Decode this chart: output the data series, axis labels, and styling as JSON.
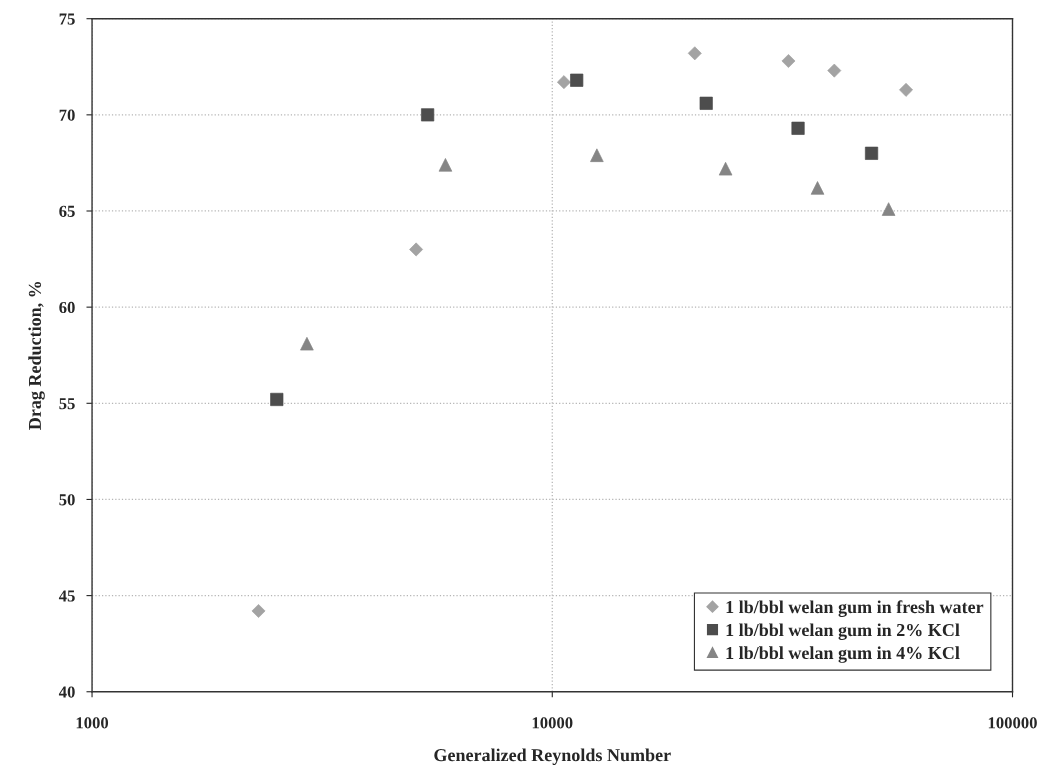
{
  "chart_data": {
    "type": "scatter",
    "xlabel": "Generalized Reynolds Number",
    "ylabel": "Drag Reduction, %",
    "series": [
      {
        "name": "1 lb/bbl welan gum in fresh water",
        "color": "#a3a3a3",
        "marker": "diamond",
        "x": [
          2300,
          5060,
          10600,
          20400,
          32600,
          41000,
          58700
        ],
        "values": [
          44.2,
          63.0,
          71.7,
          73.2,
          72.8,
          72.3,
          71.3
        ]
      },
      {
        "name": "1 lb/bbl welan gum in 2% KCl",
        "color": "#4d4d4d",
        "marker": "square",
        "x": [
          2520,
          5360,
          11300,
          21600,
          34200,
          49400
        ],
        "values": [
          55.2,
          70.0,
          71.8,
          70.6,
          69.3,
          68.0
        ]
      },
      {
        "name": "1 lb/bbl welan gum in 4% KCl",
        "color": "#858585",
        "marker": "triangle",
        "x": [
          2930,
          5860,
          12500,
          23800,
          37700,
          53800
        ],
        "values": [
          58.1,
          67.4,
          67.9,
          67.2,
          66.2,
          65.1
        ]
      }
    ],
    "log": "x",
    "xlim": [
      1000,
      100000
    ],
    "xticks": [
      1000,
      10000,
      100000
    ],
    "ylim": [
      40,
      75
    ],
    "yticks": [
      40,
      45,
      50,
      55,
      60,
      65,
      70,
      75
    ],
    "grid": true,
    "legend": "bottom right"
  }
}
